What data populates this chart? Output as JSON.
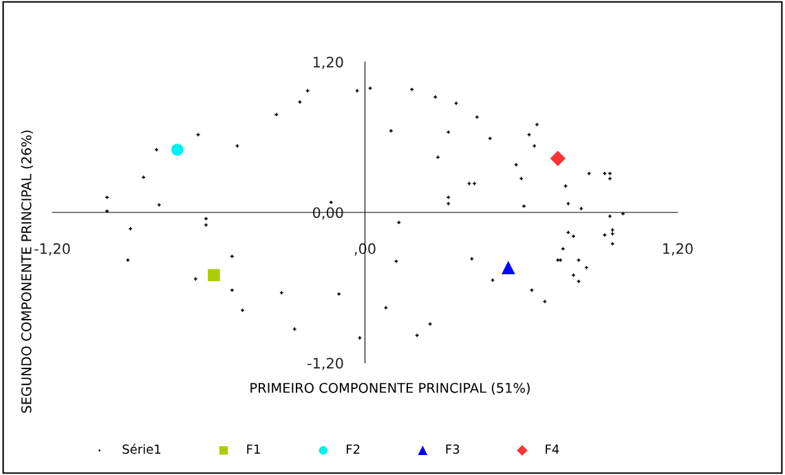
{
  "chart_data": {
    "type": "scatter",
    "xlabel": "PRIMEIRO COMPONENTE PRINCIPAL (51%)",
    "ylabel": "SEGUNDO COMPONENTE PRINCIPAL (26%)",
    "xlim": [
      -1.2,
      1.2
    ],
    "ylim": [
      -1.2,
      1.2
    ],
    "xticks": [
      {
        "value": -1.2,
        "label": "-1,20"
      },
      {
        "value": 0,
        "label": ",00"
      },
      {
        "value": 1.2,
        "label": "1,20"
      }
    ],
    "yticks": [
      {
        "value": -1.2,
        "label": "-1,20"
      },
      {
        "value": 0,
        "label": "0,00"
      },
      {
        "value": 1.2,
        "label": "1,20"
      }
    ],
    "grid": false,
    "legend": "bottom",
    "series": [
      {
        "name": "Série1",
        "color": "#000000",
        "marker": "cross",
        "x": [
          -0.99,
          -0.99,
          -0.9,
          -0.91,
          -0.85,
          -0.8,
          -0.79,
          -0.64,
          -0.61,
          -0.61,
          -0.49,
          -0.34,
          -0.25,
          -0.22,
          -0.13,
          -0.03,
          0.02,
          -0.65,
          -0.51,
          -0.51,
          -0.47,
          -0.32,
          -0.27,
          -0.1,
          -0.02,
          0.1,
          0.18,
          0.27,
          0.28,
          0.32,
          0.35,
          0.32,
          0.32,
          0.4,
          0.42,
          0.43,
          0.48,
          0.58,
          0.6,
          0.61,
          0.63,
          0.65,
          0.66,
          0.77,
          0.78,
          0.83,
          0.86,
          0.92,
          0.94,
          0.94,
          0.99,
          0.94,
          0.13,
          0.12,
          0.08,
          0.25,
          0.2,
          0.41,
          0.49,
          0.64,
          0.69,
          0.74,
          0.75,
          0.76,
          0.78,
          0.8,
          0.8,
          0.82,
          0.82,
          0.85,
          0.92,
          0.95,
          0.95,
          0.95
        ],
        "values": [
          0.12,
          0.01,
          -0.13,
          -0.38,
          0.28,
          0.5,
          0.06,
          0.62,
          -0.05,
          -0.1,
          0.53,
          0.78,
          0.88,
          0.97,
          0.08,
          0.97,
          0.99,
          -0.53,
          -0.35,
          -0.62,
          -0.78,
          -0.64,
          -0.93,
          -0.65,
          -1.0,
          0.65,
          0.98,
          0.92,
          0.44,
          0.64,
          0.87,
          0.12,
          0.07,
          0.23,
          0.23,
          0.76,
          0.59,
          0.38,
          0.27,
          0.05,
          0.62,
          0.53,
          0.7,
          0.21,
          0.07,
          0.03,
          0.31,
          0.31,
          0.27,
          0.31,
          -0.01,
          -0.03,
          -0.08,
          -0.39,
          -0.76,
          -0.89,
          -0.98,
          -0.37,
          -0.54,
          -0.62,
          -0.71,
          -0.38,
          -0.38,
          -0.29,
          -0.16,
          -0.19,
          -0.5,
          -0.55,
          -0.38,
          -0.44,
          -0.18,
          -0.14,
          -0.17,
          -0.25
        ]
      },
      {
        "name": "F1",
        "color": "#aacc00",
        "marker": "square",
        "x": [
          -0.58
        ],
        "values": [
          -0.5
        ]
      },
      {
        "name": "F2",
        "color": "#00f0f0",
        "marker": "circle",
        "x": [
          -0.72
        ],
        "values": [
          0.5
        ]
      },
      {
        "name": "F3",
        "color": "#0000ff",
        "marker": "triangle",
        "x": [
          0.55
        ],
        "values": [
          -0.44
        ]
      },
      {
        "name": "F4",
        "color": "#ff3333",
        "marker": "diamond",
        "x": [
          0.74
        ],
        "values": [
          0.43
        ]
      }
    ]
  }
}
